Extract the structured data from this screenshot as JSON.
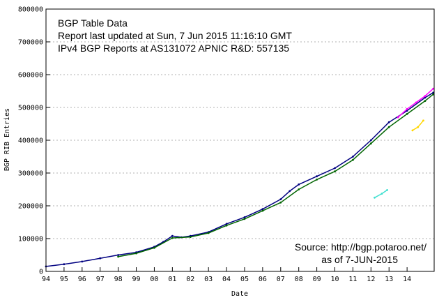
{
  "chart_data": {
    "type": "scatter",
    "annotations": [
      "BGP Table Data",
      "Report last updated at Sun, 7 Jun 2015 11:16:10 GMT",
      "IPv4 BGP Reports at AS131072 APNIC R&D:  557135"
    ],
    "source_lines": [
      "Source: http://bgp.potaroo.net/",
      "as of 7-JUN-2015"
    ],
    "xlabel": "Date",
    "ylabel": "BGP RIB Entries",
    "xlim": [
      1994.0,
      2015.5
    ],
    "ylim": [
      0,
      800000
    ],
    "x_tick_labels": [
      "94",
      "95",
      "96",
      "97",
      "98",
      "99",
      "00",
      "01",
      "02",
      "03",
      "04",
      "05",
      "06",
      "07",
      "08",
      "09",
      "10",
      "11",
      "12",
      "13",
      "14"
    ],
    "x_tick_values": [
      1994,
      1995,
      1996,
      1997,
      1998,
      1999,
      2000,
      2001,
      2002,
      2003,
      2004,
      2005,
      2006,
      2007,
      2008,
      2009,
      2010,
      2011,
      2012,
      2013,
      2014
    ],
    "y_ticks": [
      0,
      100000,
      200000,
      300000,
      400000,
      500000,
      600000,
      700000,
      800000
    ],
    "y_tick_labels": [
      "0",
      "100000",
      "200000",
      "300000",
      "400000",
      "500000",
      "600000",
      "700000",
      "800000"
    ],
    "grid": true,
    "series": [
      {
        "color": "#000080",
        "x": [
          1994.0,
          1995.0,
          1996.0,
          1997.0,
          1998.0,
          1999.0,
          2000.0,
          2000.5,
          2001.0,
          2001.5,
          2002.0,
          2003.0,
          2004.0,
          2005.0,
          2006.0,
          2007.0,
          2007.5,
          2008.0,
          2009.0,
          2010.0,
          2011.0,
          2012.0,
          2013.0,
          2014.0,
          2015.0,
          2015.45
        ],
        "y": [
          15000,
          22000,
          30000,
          40000,
          50000,
          58000,
          75000,
          90000,
          108000,
          104000,
          108000,
          120000,
          145000,
          165000,
          190000,
          220000,
          245000,
          265000,
          290000,
          315000,
          350000,
          400000,
          455000,
          490000,
          530000,
          545000
        ]
      },
      {
        "color": "#006400",
        "x": [
          1998.0,
          1999.0,
          2000.0,
          2001.0,
          2002.0,
          2003.0,
          2004.0,
          2005.0,
          2006.0,
          2007.0,
          2008.0,
          2009.0,
          2010.0,
          2011.0,
          2012.0,
          2013.0,
          2014.0,
          2015.0,
          2015.45
        ],
        "y": [
          45000,
          55000,
          72000,
          102000,
          105000,
          117000,
          140000,
          160000,
          185000,
          210000,
          250000,
          280000,
          305000,
          340000,
          390000,
          440000,
          480000,
          520000,
          540000
        ]
      },
      {
        "color": "#ff00ff",
        "x": [
          2013.5,
          2014.0,
          2014.5,
          2015.0,
          2015.45
        ],
        "y": [
          470000,
          495000,
          515000,
          535000,
          557135
        ]
      },
      {
        "color": "#ffd700",
        "x": [
          2014.3,
          2014.6,
          2014.9
        ],
        "y": [
          430000,
          440000,
          460000
        ]
      },
      {
        "color": "#40e0d0",
        "x": [
          2012.2,
          2012.6,
          2012.9
        ],
        "y": [
          225000,
          237000,
          248000
        ]
      }
    ]
  }
}
